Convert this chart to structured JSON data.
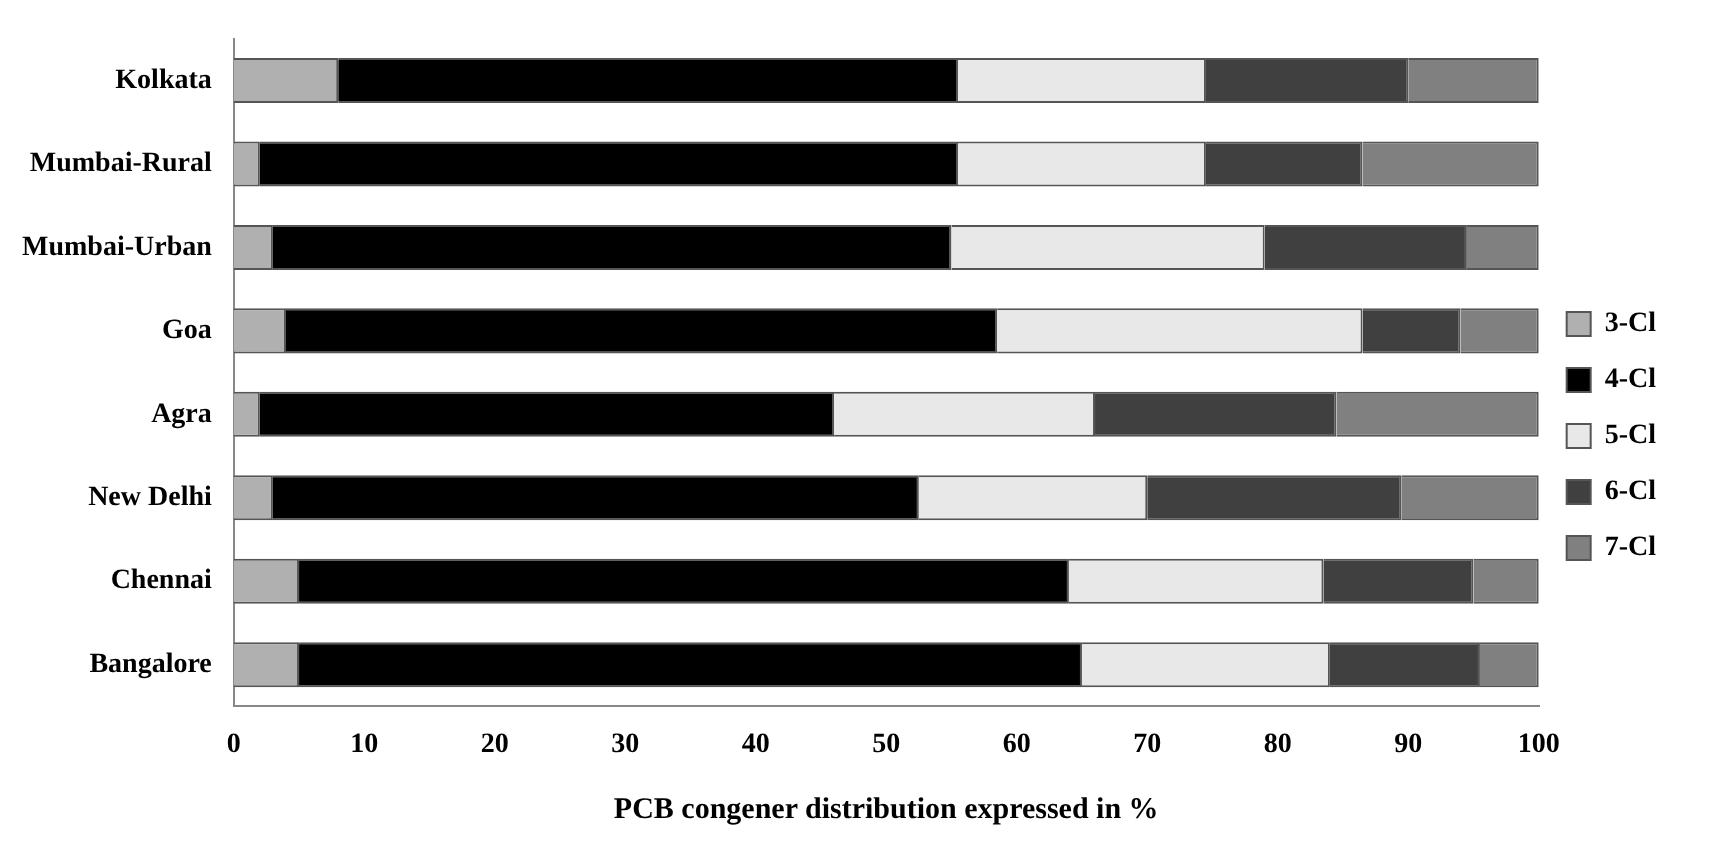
{
  "chart_data": {
    "type": "bar",
    "orientation": "horizontal",
    "stacked": true,
    "xlabel": "PCB congener distribution expressed in %",
    "categories": [
      "Kolkata",
      "Mumbai-Rural",
      "Mumbai-Urban",
      "Goa",
      "Agra",
      "New Delhi",
      "Chennai",
      "Bangalore"
    ],
    "series": [
      {
        "name": "3-Cl",
        "color": "#b0b0b0",
        "values": [
          8,
          2,
          3,
          4,
          2,
          3,
          5,
          5
        ]
      },
      {
        "name": "4-Cl",
        "color": "#000000",
        "values": [
          47.5,
          53.5,
          52,
          54.5,
          44,
          49.5,
          59,
          60
        ]
      },
      {
        "name": "5-Cl",
        "color": "#e8e8e8",
        "values": [
          19,
          19,
          24,
          28,
          20,
          17.5,
          19.5,
          19
        ]
      },
      {
        "name": "6-Cl",
        "color": "#404040",
        "values": [
          15.5,
          12,
          15.5,
          7.5,
          18.5,
          19.5,
          11.5,
          11.5
        ]
      },
      {
        "name": "7-Cl",
        "color": "#808080",
        "values": [
          10,
          13.5,
          5.5,
          6,
          15.5,
          10.5,
          5,
          4.5
        ]
      }
    ],
    "xlim": [
      0,
      100
    ],
    "xticks": [
      0,
      10,
      20,
      30,
      40,
      50,
      60,
      70,
      80,
      90,
      100
    ],
    "grid": false,
    "legend": "right"
  }
}
